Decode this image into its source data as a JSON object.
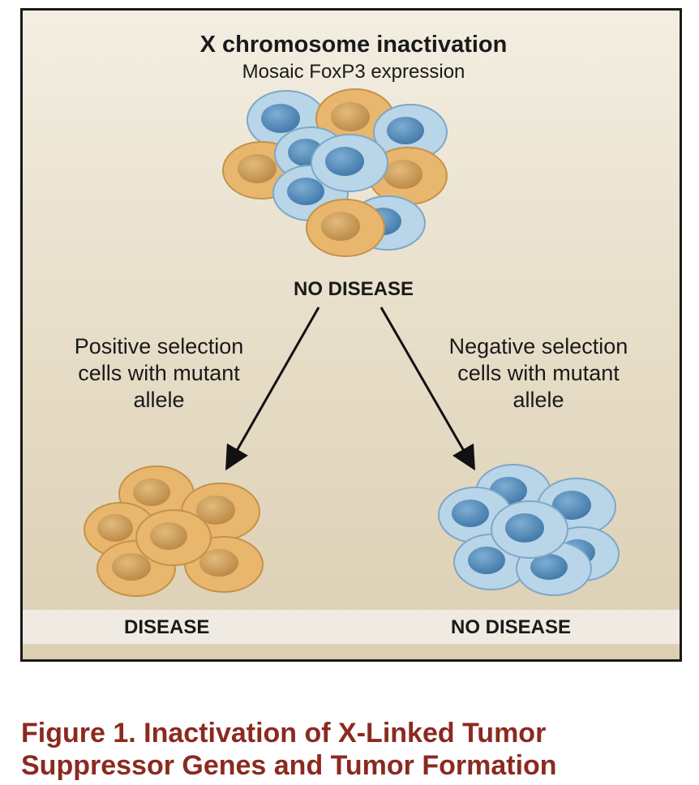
{
  "figure": {
    "title": "X chromosome inactivation",
    "subtitle": "Mosaic FoxP3 expression",
    "top_status": "NO DISEASE",
    "left_branch": [
      "Positive selection",
      "cells with mutant",
      "allele"
    ],
    "right_branch": [
      "Negative selection",
      "cells with mutant",
      "allele"
    ],
    "left_status": "DISEASE",
    "right_status": "NO DISEASE"
  },
  "caption": {
    "line1": "Figure 1. Inactivation of X-Linked Tumor",
    "line2": "Suppressor Genes and Tumor Formation"
  },
  "colors": {
    "orange_cell": "#e8b66c",
    "orange_nucleus": "#c79651",
    "blue_cell": "#b9d5e8",
    "blue_nucleus": "#5f93c0",
    "caption": "#8b2a1f"
  }
}
